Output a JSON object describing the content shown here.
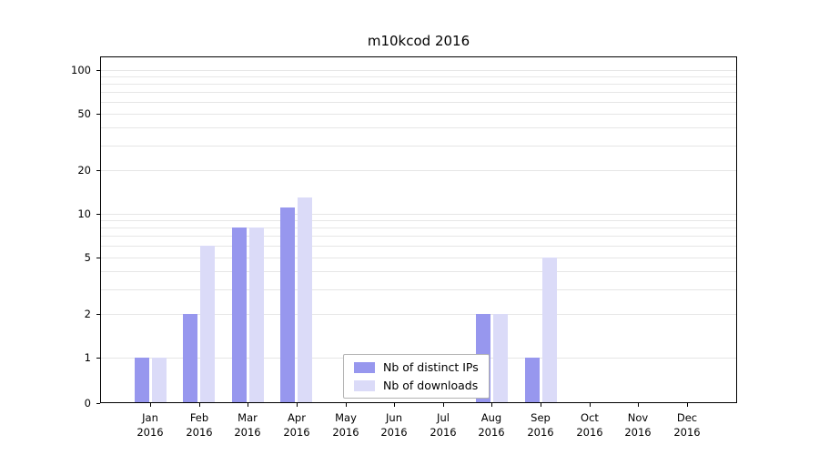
{
  "chart_data": {
    "type": "bar",
    "title": "m10kcod 2016",
    "scale": "symlog",
    "grid": true,
    "legend_position": "lower center",
    "xlabel": "",
    "ylabel": "",
    "ylim": [
      0,
      100
    ],
    "categories": [
      {
        "month": "Jan",
        "year": "2016"
      },
      {
        "month": "Feb",
        "year": "2016"
      },
      {
        "month": "Mar",
        "year": "2016"
      },
      {
        "month": "Apr",
        "year": "2016"
      },
      {
        "month": "May",
        "year": "2016"
      },
      {
        "month": "Jun",
        "year": "2016"
      },
      {
        "month": "Jul",
        "year": "2016"
      },
      {
        "month": "Aug",
        "year": "2016"
      },
      {
        "month": "Sep",
        "year": "2016"
      },
      {
        "month": "Oct",
        "year": "2016"
      },
      {
        "month": "Nov",
        "year": "2016"
      },
      {
        "month": "Dec",
        "year": "2016"
      }
    ],
    "series": [
      {
        "name": "Nb of distinct IPs",
        "color": "#9797ee",
        "values": [
          1,
          2,
          8,
          11,
          0,
          0,
          0,
          2,
          1,
          0,
          0,
          0
        ]
      },
      {
        "name": "Nb of downloads",
        "color": "#dbdbf8",
        "values": [
          1,
          6,
          8,
          13,
          0,
          0,
          0,
          2,
          5,
          0,
          0,
          0
        ]
      }
    ],
    "y_ticks": [
      0,
      1,
      2,
      5,
      10,
      20,
      50,
      100
    ],
    "y_tick_labels": [
      "0",
      "1",
      "2",
      "5",
      "10",
      "20",
      "50",
      "100"
    ],
    "minor_grid_values": [
      1,
      2,
      3,
      4,
      5,
      6,
      7,
      8,
      9,
      10,
      20,
      30,
      40,
      50,
      60,
      70,
      80,
      90,
      100
    ]
  }
}
